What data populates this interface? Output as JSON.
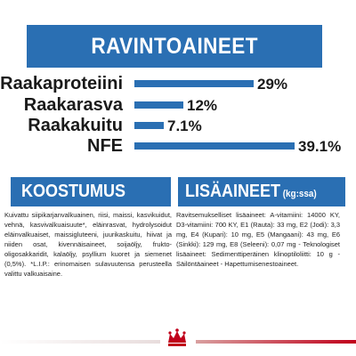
{
  "header": {
    "title": "RAVINTOAINEET"
  },
  "nutrients": [
    {
      "label": "Raakaproteiini",
      "value": "29%",
      "percent": 29
    },
    {
      "label": "Raakarasva",
      "value": "12%",
      "percent": 12
    },
    {
      "label": "Raakakuitu",
      "value": "7.1%",
      "percent": 7.1
    },
    {
      "label": "NFE",
      "value": "39.1%",
      "percent": 39.1
    }
  ],
  "composition": {
    "title": "KOOSTUMUS",
    "text": "Kuivattu siipikarjanvalkuainen, riisi, maissi, kasvikuidut, vehnä, kasvivalkuaisuute*, eläinrasvat, hydrolysoidut eläinvalkuaiset, maissigluteeni, juurikaskuitu, hiivat ja niiden osat, kivennäisaineet, soijaöljy, frukto-oligosakkaridit, kalaöljy, psyllium kuoret ja siemenet (0,5%). *L.I.P.: erinomaisen sulavuutensa perusteella valittu valkuaisaine."
  },
  "additives": {
    "title": "LISÄAINEET",
    "unit": "(kg:ssa)",
    "text": "Ravitsemukselliset lisäaineet: A-vitamiini: 14000 KY, D3-vitamiini: 700 KY, E1 (Rauta): 33 mg, E2 (Jodi): 3,3 mg, E4 (Kupari): 10 mg, E5 (Mangaani): 43 mg, E6 (Sinkki): 129 mg, E8 (Seleeni): 0,07 mg - Teknologiset lisäaineet: Sedimenttiperäinen klinoptiloliitti: 10 g - Säilöntäaineet - Hapettumisenestoaineet."
  },
  "colors": {
    "accent": "#2a6fb3",
    "brand": "#c0001a"
  },
  "logo": {
    "icon": "crown-icon"
  }
}
